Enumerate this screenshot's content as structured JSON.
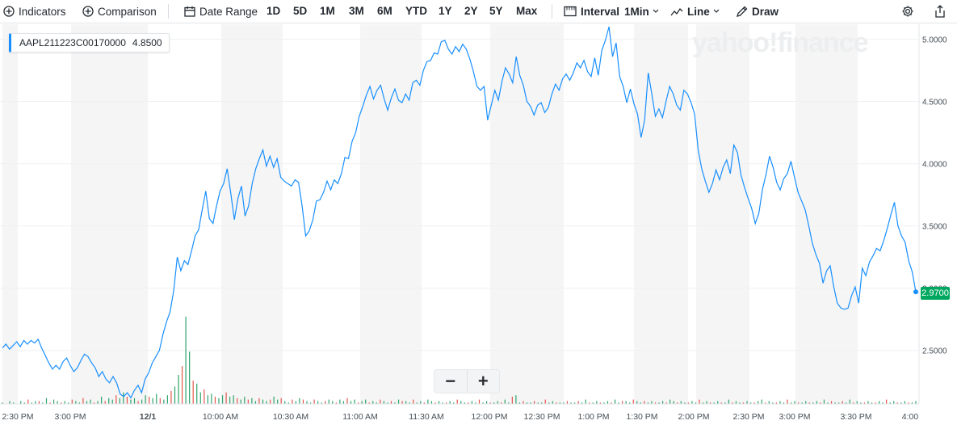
{
  "toolbar": {
    "indicators": "Indicators",
    "comparison": "Comparison",
    "date_range": "Date Range",
    "ranges": [
      "1D",
      "5D",
      "1M",
      "3M",
      "6M",
      "YTD",
      "1Y",
      "2Y",
      "5Y",
      "Max"
    ],
    "interval_label": "Interval",
    "interval_value": "1Min",
    "chart_type": "Line",
    "draw": "Draw"
  },
  "symbol": "AAPL211223C00170000",
  "symbol_value": "4.8500",
  "last_price": "2.9700",
  "watermark": "yahoo!finance",
  "zoom": {
    "minus": "−",
    "plus": "+"
  },
  "colors": {
    "line": "#188fff",
    "price_tag": "#00a85f",
    "volume_up": "#2fa46b",
    "volume_down": "#e2574c",
    "band": "#f5f5f5",
    "grid": "#eef0f2"
  },
  "chart_data": {
    "type": "line",
    "title": "",
    "xlabel": "",
    "ylabel": "",
    "ylim": [
      2.07,
      5.12
    ],
    "yticks": [
      "5.0000",
      "4.5000",
      "4.0000",
      "3.5000",
      "3.0000",
      "2.5000"
    ],
    "xticks": [
      "2:30 PM",
      "3:00 PM",
      "12/1",
      "10:00 AM",
      "10:30 AM",
      "11:00 AM",
      "11:30 AM",
      "12:00 PM",
      "12:30 PM",
      "1:00 PM",
      "1:30 PM",
      "2:00 PM",
      "2:30 PM",
      "3:00 PM",
      "3:30 PM",
      "4:00"
    ],
    "series": [
      {
        "values": [
          2.52,
          2.55,
          2.51,
          2.54,
          2.57,
          2.53,
          2.58,
          2.55,
          2.58,
          2.56,
          2.59,
          2.52,
          2.46,
          2.4,
          2.35,
          2.38,
          2.35,
          2.41,
          2.44,
          2.38,
          2.33,
          2.36,
          2.42,
          2.47,
          2.45,
          2.4,
          2.36,
          2.29,
          2.33,
          2.27,
          2.24,
          2.29,
          2.24,
          2.15,
          2.13,
          2.16,
          2.12,
          2.18,
          2.22,
          2.16,
          2.27,
          2.32,
          2.4,
          2.45,
          2.5,
          2.63,
          2.73,
          2.81,
          2.98,
          3.25,
          3.14,
          3.22,
          3.19,
          3.3,
          3.42,
          3.47,
          3.63,
          3.78,
          3.56,
          3.52,
          3.66,
          3.78,
          3.84,
          3.96,
          3.76,
          3.55,
          3.72,
          3.82,
          3.58,
          3.66,
          3.84,
          3.96,
          4.04,
          4.11,
          3.98,
          4.06,
          3.97,
          4.04,
          3.89,
          3.86,
          3.84,
          3.82,
          3.87,
          3.85,
          3.66,
          3.42,
          3.46,
          3.55,
          3.7,
          3.71,
          3.77,
          3.86,
          3.79,
          3.87,
          3.84,
          3.92,
          4.05,
          4.04,
          4.18,
          4.25,
          4.38,
          4.46,
          4.55,
          4.62,
          4.52,
          4.59,
          4.63,
          4.52,
          4.43,
          4.53,
          4.6,
          4.51,
          4.49,
          4.56,
          4.51,
          4.65,
          4.67,
          4.63,
          4.75,
          4.82,
          4.83,
          4.89,
          4.88,
          4.98,
          4.99,
          4.92,
          4.88,
          4.94,
          4.9,
          4.96,
          4.92,
          4.84,
          4.74,
          4.62,
          4.59,
          4.62,
          4.35,
          4.47,
          4.59,
          4.51,
          4.66,
          4.77,
          4.72,
          4.65,
          4.86,
          4.71,
          4.63,
          4.5,
          4.46,
          4.39,
          4.47,
          4.49,
          4.41,
          4.45,
          4.56,
          4.64,
          4.59,
          4.68,
          4.72,
          4.67,
          4.73,
          4.81,
          4.77,
          4.83,
          4.74,
          4.7,
          4.85,
          4.71,
          4.91,
          4.99,
          5.1,
          4.86,
          4.97,
          4.7,
          4.62,
          4.49,
          4.6,
          4.48,
          4.4,
          4.21,
          4.35,
          4.73,
          4.56,
          4.38,
          4.44,
          4.37,
          4.5,
          4.62,
          4.56,
          4.47,
          4.43,
          4.59,
          4.56,
          4.49,
          4.4,
          4.11,
          3.96,
          3.86,
          3.77,
          3.84,
          3.95,
          3.87,
          3.97,
          4.03,
          3.92,
          4.15,
          4.09,
          3.91,
          3.81,
          3.72,
          3.64,
          3.52,
          3.6,
          3.79,
          3.91,
          4.06,
          3.97,
          3.85,
          3.79,
          3.88,
          3.92,
          4.02,
          3.89,
          3.77,
          3.7,
          3.63,
          3.5,
          3.36,
          3.27,
          3.2,
          3.04,
          3.14,
          3.18,
          3.01,
          2.88,
          2.84,
          2.83,
          2.84,
          2.94,
          3.01,
          2.88,
          3.16,
          3.1,
          3.21,
          3.26,
          3.32,
          3.3,
          3.38,
          3.48,
          3.59,
          3.69,
          3.5,
          3.42,
          3.37,
          3.22,
          3.13,
          2.97
        ]
      }
    ],
    "volume": [
      1,
      0,
      2,
      1,
      0,
      2,
      1,
      3,
      1,
      2,
      2,
      1,
      4,
      1,
      3,
      2,
      1,
      2,
      1,
      3,
      2,
      1,
      4,
      2,
      3,
      1,
      2,
      5,
      2,
      4,
      3,
      6,
      4,
      8,
      5,
      3,
      4,
      2,
      3,
      6,
      5,
      4,
      7,
      4,
      3,
      6,
      9,
      12,
      20,
      26,
      60,
      36,
      16,
      14,
      8,
      10,
      6,
      7,
      5,
      4,
      6,
      8,
      5,
      6,
      4,
      3,
      5,
      3,
      4,
      2,
      4,
      3,
      2,
      3,
      5,
      3,
      4,
      2,
      1,
      3,
      2,
      4,
      3,
      2,
      1,
      3,
      2,
      1,
      2,
      3,
      2,
      1,
      3,
      2,
      4,
      2,
      3,
      1,
      2,
      3,
      1,
      2,
      1,
      3,
      2,
      1,
      2,
      1,
      3,
      2,
      2,
      1,
      3,
      1,
      2,
      1,
      3,
      2,
      1,
      2,
      1,
      1,
      2,
      1,
      3,
      2,
      1,
      1,
      2,
      1,
      3,
      1,
      2,
      1,
      1,
      2,
      1,
      3,
      1,
      5,
      6,
      1,
      2,
      1,
      1,
      2,
      1,
      1,
      3,
      1,
      2,
      1,
      1,
      1,
      2,
      1,
      1,
      2,
      1,
      3,
      1,
      1,
      2,
      1,
      1,
      2,
      1,
      3,
      1,
      2,
      2,
      1,
      3,
      2,
      1,
      2,
      1,
      2,
      1,
      1,
      2,
      1,
      3,
      2,
      1,
      2,
      1,
      1,
      2,
      1,
      3,
      1,
      2,
      1,
      1,
      2,
      1,
      1,
      3,
      1,
      2,
      1,
      1,
      2,
      1,
      1,
      2,
      3,
      1,
      2,
      1,
      1,
      2,
      1,
      3,
      1,
      2,
      1,
      1,
      2,
      1,
      1,
      2,
      1,
      3,
      1,
      2,
      1,
      1,
      2,
      1,
      3,
      1,
      2,
      1,
      1,
      2,
      1,
      1,
      2,
      1,
      3,
      1,
      2,
      1,
      1,
      2,
      1,
      1,
      2
    ]
  }
}
